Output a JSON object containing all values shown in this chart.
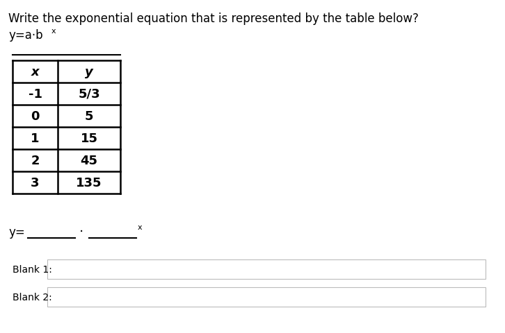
{
  "title_line1": "Write the exponential equation that is represented by the table below?",
  "title_line2_main": "y=a·b",
  "title_line2_sup": "x",
  "table_headers": [
    "x",
    "y"
  ],
  "table_data": [
    [
      "-1",
      "5/3"
    ],
    [
      "0",
      "5"
    ],
    [
      "1",
      "15"
    ],
    [
      "2",
      "45"
    ],
    [
      "3",
      "135"
    ]
  ],
  "equation_label": "y=",
  "blank1_label": "Blank 1:",
  "blank2_label": "Blank 2:",
  "bg_color": "#ffffff",
  "text_color": "#000000",
  "table_border_color": "#000000",
  "input_box_border": "#bbbbbb",
  "title_fontsize": 12,
  "table_fontsize": 13,
  "eq_fontsize": 12,
  "blank_label_fontsize": 10
}
